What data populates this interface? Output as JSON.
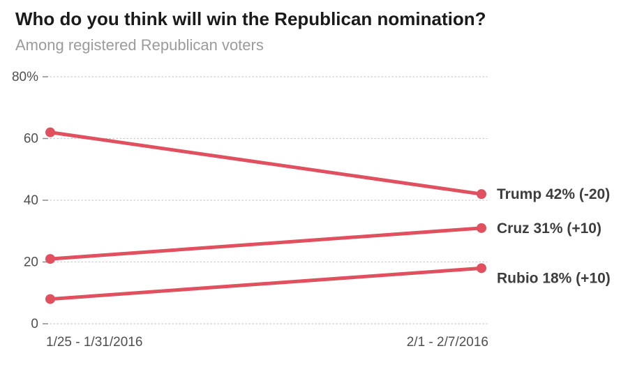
{
  "title": "Who do you think will win the Republican nomination?",
  "subtitle": "Among registered Republican voters",
  "chart_data": {
    "type": "line",
    "x_categories": [
      "1/25 - 1/31/2016",
      "2/1 - 2/7/2016"
    ],
    "series": [
      {
        "name": "Trump",
        "values": [
          62,
          42
        ],
        "end_label": "Trump 42% (-20)"
      },
      {
        "name": "Cruz",
        "values": [
          21,
          31
        ],
        "end_label": "Cruz 31% (+10)"
      },
      {
        "name": "Rubio",
        "values": [
          8,
          18
        ],
        "end_label": "Rubio 18% (+10)"
      }
    ],
    "ylim": [
      0,
      80
    ],
    "yticks": [
      0,
      20,
      40,
      60,
      80
    ],
    "ytick_labels": [
      "0",
      "20",
      "40",
      "60",
      "80%"
    ],
    "grid": true,
    "legend_position": "right-of-last-point",
    "colors": {
      "line": "#e0505f",
      "title": "#1a1a1a",
      "subtitle": "#9b9b9b",
      "axis_text": "#4f4f4f",
      "tick_mark": "#8a8a8a",
      "series_label": "#3d3d3d",
      "gridline": "#cccccc"
    }
  }
}
